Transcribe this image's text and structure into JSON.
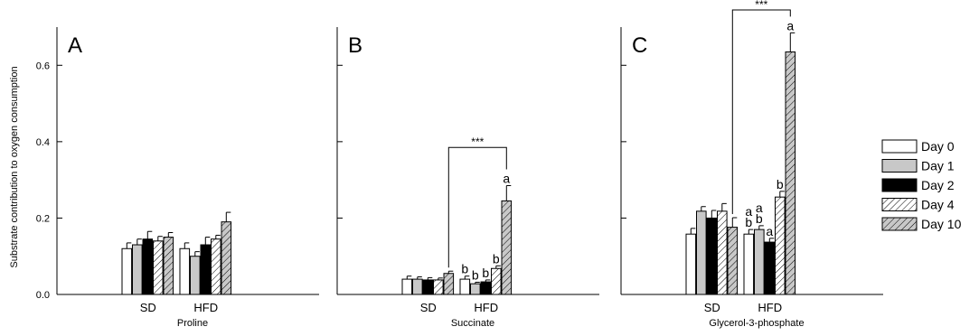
{
  "chart_data": {
    "type": "bar",
    "ylabel": "Substrate contribution to oxygen consumption",
    "ylim": [
      0,
      0.7
    ],
    "yticks": [
      0.0,
      0.2,
      0.4,
      0.6
    ],
    "ytick_labels": [
      "0.0",
      "0.2",
      "0.4",
      "0.6"
    ],
    "categories": [
      "SD",
      "HFD"
    ],
    "legend": {
      "placement": "right",
      "entries": [
        {
          "name": "Day 0",
          "fill": "#ffffff",
          "pattern": "solid"
        },
        {
          "name": "Day 1",
          "fill": "#c8c8c8",
          "pattern": "solid"
        },
        {
          "name": "Day 2",
          "fill": "#000000",
          "pattern": "solid"
        },
        {
          "name": "Day 4",
          "fill": "#ffffff",
          "pattern": "hatch"
        },
        {
          "name": "Day 10",
          "fill": "#c8c8c8",
          "pattern": "hatch"
        }
      ]
    },
    "significance_label": "***",
    "panels": [
      {
        "letter": "A",
        "xlabel": "Proline",
        "values": [
          [
            0.12,
            0.13,
            0.145,
            0.14,
            0.15
          ],
          [
            0.12,
            0.1,
            0.13,
            0.145,
            0.19
          ]
        ],
        "errors": [
          [
            0.015,
            0.015,
            0.02,
            0.012,
            0.012
          ],
          [
            0.015,
            0.012,
            0.02,
            0.01,
            0.025
          ]
        ],
        "letters": [
          [
            "",
            "",
            "",
            "",
            ""
          ],
          [
            "",
            "",
            "",
            "",
            ""
          ]
        ],
        "letters2": [
          [
            "",
            "",
            "",
            "",
            ""
          ],
          [
            "",
            "",
            "",
            "",
            ""
          ]
        ],
        "bracket": null
      },
      {
        "letter": "B",
        "xlabel": "Succinate",
        "values": [
          [
            0.04,
            0.04,
            0.038,
            0.038,
            0.055
          ],
          [
            0.04,
            0.028,
            0.033,
            0.068,
            0.245
          ]
        ],
        "errors": [
          [
            0.008,
            0.006,
            0.006,
            0.005,
            0.006
          ],
          [
            0.008,
            0.004,
            0.005,
            0.007,
            0.04
          ]
        ],
        "letters": [
          [
            "",
            "",
            "",
            "",
            ""
          ],
          [
            "b",
            "b",
            "b",
            "b",
            "a"
          ]
        ],
        "letters2": [
          [
            "",
            "",
            "",
            "",
            ""
          ],
          [
            "",
            "",
            "",
            "",
            ""
          ]
        ],
        "bracket": {
          "from_group": 0,
          "from_bar": 4,
          "to_group": 1,
          "to_bar": 4,
          "y": 0.385
        }
      },
      {
        "letter": "C",
        "xlabel": "Glycerol-3-phosphate",
        "values": [
          [
            0.158,
            0.218,
            0.2,
            0.218,
            0.176
          ],
          [
            0.158,
            0.17,
            0.137,
            0.255,
            0.635
          ]
        ],
        "errors": [
          [
            0.015,
            0.012,
            0.02,
            0.02,
            0.025
          ],
          [
            0.012,
            0.01,
            0.01,
            0.015,
            0.05
          ]
        ],
        "letters": [
          [
            "",
            "",
            "",
            "",
            ""
          ],
          [
            "b",
            "b",
            "a",
            "b",
            "a"
          ]
        ],
        "letters2": [
          [
            "",
            "",
            "",
            "",
            ""
          ],
          [
            "a",
            "a",
            "",
            "",
            ""
          ]
        ],
        "bracket": {
          "from_group": 0,
          "from_bar": 4,
          "to_group": 1,
          "to_bar": 4,
          "y": 0.745
        }
      }
    ]
  }
}
